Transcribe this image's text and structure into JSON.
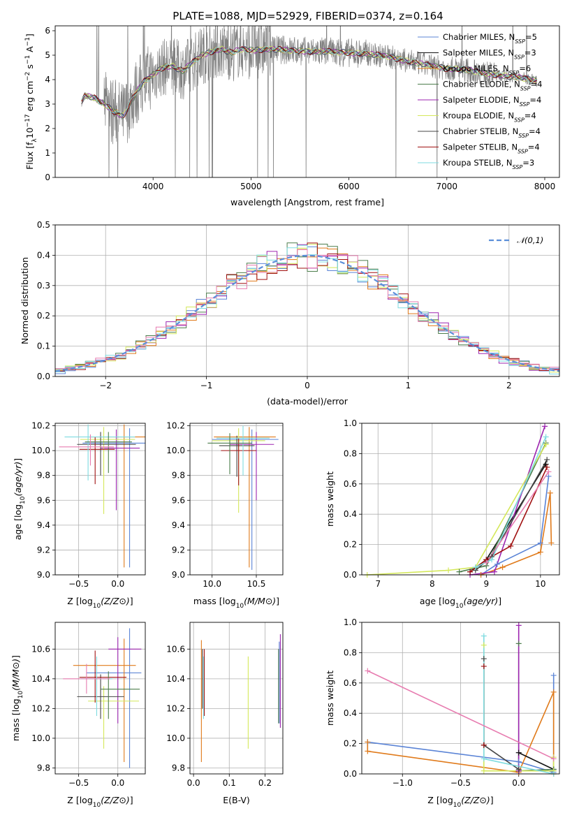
{
  "title": "PLATE=1088, MJD=52929, FIBERID=0374, z=0.164",
  "colors": {
    "Chabrier MILES": "#5b84d6",
    "Salpeter MILES": "#111111",
    "Kroupa MILES": "#e07a1a",
    "Chabrier ELODIE": "#4c7d4c",
    "Salpeter ELODIE": "#9d25b0",
    "Kroupa ELODIE": "#d4e85a",
    "Chabrier STELIB": "#444444",
    "Salpeter STELIB": "#a01010",
    "Kroupa STELIB": "#7edbe0",
    "pink": "#e77cb0",
    "data": "#808080"
  },
  "chart_data": [
    {
      "id": "spectrum",
      "type": "line",
      "xlabel": "wavelength [Angstrom, rest frame]",
      "ylabel": "Flux [f_λ10^{-17} erg cm^{-2} s^{-1} A^{-1}]",
      "xlim": [
        3000,
        8150
      ],
      "ylim": [
        0,
        6.2
      ],
      "xticks": [
        4000,
        5000,
        6000,
        7000,
        8000
      ],
      "yticks": [
        0,
        1,
        2,
        3,
        4,
        5,
        6
      ],
      "legend_position": "right",
      "legend": [
        {
          "name": "Chabrier MILES",
          "nssp": "5"
        },
        {
          "name": "Salpeter MILES",
          "nssp": "3"
        },
        {
          "name": "Kroupa MILES",
          "nssp": "6"
        },
        {
          "name": "Chabrier ELODIE",
          "nssp": "4"
        },
        {
          "name": "Salpeter ELODIE",
          "nssp": "4"
        },
        {
          "name": "Kroupa ELODIE",
          "nssp": "4"
        },
        {
          "name": "Chabrier STELIB",
          "nssp": "4"
        },
        {
          "name": "Salpeter STELIB",
          "nssp": "4"
        },
        {
          "name": "Kroupa STELIB",
          "nssp": "3"
        }
      ],
      "continuum": {
        "x": [
          3270,
          3300,
          3400,
          3500,
          3600,
          3700,
          3800,
          3900,
          4000,
          4100,
          4200,
          4300,
          4400,
          4500,
          4600,
          4700,
          4800,
          4900,
          5000,
          5200,
          5400,
          5600,
          5800,
          6000,
          6200,
          6400,
          6600,
          6800,
          7000,
          7200,
          7400,
          7600,
          7800,
          7920
        ],
        "y": [
          3.05,
          3.35,
          3.25,
          3.0,
          2.7,
          2.5,
          3.3,
          3.9,
          4.2,
          4.5,
          4.55,
          4.35,
          4.7,
          5.0,
          5.15,
          5.25,
          5.1,
          5.25,
          5.2,
          5.25,
          5.2,
          5.15,
          5.15,
          5.1,
          5.05,
          4.95,
          4.75,
          4.6,
          4.45,
          4.4,
          4.25,
          4.15,
          4.05,
          3.95
        ]
      }
    },
    {
      "id": "residuals",
      "type": "line",
      "xlabel": "(data-model)/error",
      "ylabel": "Normed distribution",
      "xlim": [
        -2.5,
        2.5
      ],
      "ylim": [
        0,
        0.5
      ],
      "xticks": [
        -2,
        -1,
        0,
        1,
        2
      ],
      "yticks": [
        0.0,
        0.1,
        0.2,
        0.3,
        0.4,
        0.5
      ],
      "grid": true,
      "legend_position": "top-right",
      "legend": [
        {
          "name": "𝒩(0,1)"
        }
      ],
      "gaussian": {
        "mean": 0,
        "sigma": 1
      }
    },
    {
      "id": "age-vs-Z",
      "type": "scatter",
      "xlabel": "Z [log10(Z/Z⊙)]",
      "ylabel": "age  [log10(age/yr)]",
      "xlim": [
        -0.8,
        0.35
      ],
      "ylim": [
        9.0,
        10.22
      ],
      "xticks": [
        -0.5,
        0.0
      ],
      "yticks": [
        9.0,
        9.2,
        9.4,
        9.6,
        9.8,
        10.0,
        10.2
      ],
      "grid": true,
      "errorbars": [
        {
          "series": "Chabrier MILES",
          "x": 0.15,
          "y": 10.06,
          "xerr": [
            0.6,
            0.2
          ],
          "yerr": [
            1.0,
            0.12
          ]
        },
        {
          "series": "Kroupa MILES",
          "x": 0.08,
          "y": 10.11,
          "xerr": [
            0.45,
            0.3
          ],
          "yerr": [
            1.05,
            0.1
          ]
        },
        {
          "series": "Salpeter ELODIE",
          "x": -0.02,
          "y": 10.02,
          "xerr": [
            0.2,
            0.3
          ],
          "yerr": [
            0.5,
            0.15
          ]
        },
        {
          "series": "Kroupa ELODIE",
          "x": -0.18,
          "y": 10.09,
          "xerr": [
            0.3,
            0.4
          ],
          "yerr": [
            0.6,
            0.1
          ]
        },
        {
          "series": "Chabrier STELIB",
          "x": -0.22,
          "y": 10.05,
          "xerr": [
            0.3,
            0.45
          ],
          "yerr": [
            0.25,
            0.1
          ]
        },
        {
          "series": "Salpeter STELIB",
          "x": -0.29,
          "y": 10.01,
          "xerr": [
            0.2,
            0.25
          ],
          "yerr": [
            0.28,
            0.1
          ]
        },
        {
          "series": "Kroupa STELIB",
          "x": -0.38,
          "y": 10.11,
          "xerr": [
            0.3,
            0.6
          ],
          "yerr": [
            0.35,
            0.1
          ]
        },
        {
          "series": "Chabrier ELODIE",
          "x": -0.12,
          "y": 10.07,
          "xerr": [
            0.3,
            0.3
          ],
          "yerr": [
            0.25,
            0.08
          ]
        },
        {
          "series": "pink",
          "x": -0.35,
          "y": 10.03,
          "xerr": [
            0.4,
            0.3
          ],
          "yerr": [
            0.15,
            0.1
          ]
        }
      ]
    },
    {
      "id": "age-vs-mass",
      "type": "scatter",
      "xlabel": "mass [log10(M/M⊙)]",
      "ylabel": "",
      "xlim": [
        9.75,
        10.8
      ],
      "ylim": [
        9.0,
        10.22
      ],
      "xticks": [
        10.0,
        10.5
      ],
      "yticks": [
        9.0,
        9.2,
        9.4,
        9.6,
        9.8,
        10.0,
        10.2
      ],
      "grid": true,
      "errorbars": [
        {
          "series": "Chabrier MILES",
          "x": 10.45,
          "y": 10.09,
          "xerr": [
            0.45,
            0.3
          ],
          "yerr": [
            1.05,
            0.08
          ]
        },
        {
          "series": "Kroupa MILES",
          "x": 10.42,
          "y": 10.11,
          "xerr": [
            0.4,
            0.3
          ],
          "yerr": [
            1.05,
            0.08
          ]
        },
        {
          "series": "Salpeter ELODIE",
          "x": 10.5,
          "y": 10.05,
          "xerr": [
            0.3,
            0.2
          ],
          "yerr": [
            0.45,
            0.1
          ]
        },
        {
          "series": "Kroupa ELODIE",
          "x": 10.3,
          "y": 10.08,
          "xerr": [
            0.3,
            0.3
          ],
          "yerr": [
            0.58,
            0.1
          ]
        },
        {
          "series": "Chabrier STELIB",
          "x": 10.28,
          "y": 10.04,
          "xerr": [
            0.2,
            0.2
          ],
          "yerr": [
            0.25,
            0.08
          ]
        },
        {
          "series": "Salpeter STELIB",
          "x": 10.3,
          "y": 10.0,
          "xerr": [
            0.2,
            0.2
          ],
          "yerr": [
            0.28,
            0.1
          ]
        },
        {
          "series": "Kroupa STELIB",
          "x": 10.35,
          "y": 10.1,
          "xerr": [
            0.3,
            0.3
          ],
          "yerr": [
            0.3,
            0.1
          ]
        },
        {
          "series": "Chabrier ELODIE",
          "x": 10.2,
          "y": 10.06,
          "xerr": [
            0.25,
            0.25
          ],
          "yerr": [
            0.25,
            0.08
          ]
        }
      ]
    },
    {
      "id": "massweight-vs-age",
      "type": "line",
      "xlabel": "age  [log10(age/yr)]",
      "ylabel": "mass weight",
      "xlim": [
        6.7,
        10.35
      ],
      "ylim": [
        0,
        1.0
      ],
      "xticks": [
        7,
        8,
        9,
        10
      ],
      "yticks": [
        0.0,
        0.2,
        0.4,
        0.6,
        0.8,
        1.0
      ],
      "grid": true,
      "series": [
        {
          "name": "Chabrier MILES",
          "x": [
            8.9,
            9.2,
            10.0,
            10.15
          ],
          "y": [
            0.0,
            0.07,
            0.21,
            0.65
          ]
        },
        {
          "name": "Kroupa MILES",
          "x": [
            8.9,
            9.3,
            10.0,
            10.18,
            10.2
          ],
          "y": [
            0.0,
            0.05,
            0.15,
            0.54,
            0.21
          ]
        },
        {
          "name": "Salpeter MILES",
          "x": [
            8.7,
            9.0,
            10.1
          ],
          "y": [
            0.02,
            0.1,
            0.73
          ]
        },
        {
          "name": "Chabrier ELODIE",
          "x": [
            8.5,
            9.0,
            10.1
          ],
          "y": [
            0.02,
            0.06,
            0.87
          ]
        },
        {
          "name": "Salpeter ELODIE",
          "x": [
            8.7,
            9.15,
            10.08
          ],
          "y": [
            0.0,
            0.02,
            0.98
          ]
        },
        {
          "name": "Kroupa ELODIE",
          "x": [
            6.8,
            8.3,
            8.8,
            10.1
          ],
          "y": [
            0.0,
            0.03,
            0.05,
            0.86
          ]
        },
        {
          "name": "Chabrier STELIB",
          "x": [
            8.8,
            9.1,
            10.12
          ],
          "y": [
            0.03,
            0.12,
            0.76
          ]
        },
        {
          "name": "Salpeter STELIB",
          "x": [
            8.7,
            9.0,
            9.45,
            10.12
          ],
          "y": [
            0.02,
            0.1,
            0.19,
            0.71
          ]
        },
        {
          "name": "Kroupa STELIB",
          "x": [
            8.8,
            9.1,
            10.1
          ],
          "y": [
            0.05,
            0.1,
            0.91
          ]
        },
        {
          "name": "pink",
          "x": [
            9.0,
            10.15
          ],
          "y": [
            0.08,
            0.68
          ]
        }
      ]
    },
    {
      "id": "mass-vs-Z",
      "type": "scatter",
      "xlabel": "Z [log10(Z/Z⊙)]",
      "ylabel": "mass [log10(M/M⊙)]",
      "xlim": [
        -0.8,
        0.35
      ],
      "ylim": [
        9.76,
        10.78
      ],
      "xticks": [
        -0.5,
        0.0
      ],
      "yticks": [
        9.8,
        10.0,
        10.2,
        10.4,
        10.6
      ],
      "grid": true,
      "errorbars": [
        {
          "series": "Chabrier MILES",
          "x": 0.15,
          "y": 10.44,
          "xerr": [
            0.55,
            0.15
          ],
          "yerr": [
            0.64,
            0.3
          ]
        },
        {
          "series": "Kroupa MILES",
          "x": 0.08,
          "y": 10.49,
          "xerr": [
            0.65,
            0.15
          ],
          "yerr": [
            0.65,
            0.18
          ]
        },
        {
          "series": "Salpeter ELODIE",
          "x": 0.0,
          "y": 10.6,
          "xerr": [
            0.12,
            0.3
          ],
          "yerr": [
            0.5,
            0.08
          ]
        },
        {
          "series": "Kroupa ELODIE",
          "x": -0.18,
          "y": 10.25,
          "xerr": [
            0.2,
            0.45
          ],
          "yerr": [
            0.32,
            0.1
          ]
        },
        {
          "series": "Chabrier STELIB",
          "x": -0.22,
          "y": 10.28,
          "xerr": [
            0.3,
            0.3
          ],
          "yerr": [
            0.15,
            0.15
          ]
        },
        {
          "series": "Salpeter STELIB",
          "x": -0.29,
          "y": 10.41,
          "xerr": [
            0.2,
            0.4
          ],
          "yerr": [
            0.17,
            0.18
          ]
        },
        {
          "series": "Kroupa STELIB",
          "x": -0.27,
          "y": 10.4,
          "xerr": [
            0.2,
            0.2
          ],
          "yerr": [
            0.25,
            0.15
          ]
        },
        {
          "series": "Chabrier ELODIE",
          "x": -0.12,
          "y": 10.33,
          "xerr": [
            0.1,
            0.4
          ],
          "yerr": [
            0.2,
            0.12
          ]
        },
        {
          "series": "pink",
          "x": -0.4,
          "y": 10.4,
          "xerr": [
            0.3,
            0.3
          ],
          "yerr": [
            0.1,
            0.1
          ]
        }
      ]
    },
    {
      "id": "mass-vs-EBV",
      "type": "scatter",
      "xlabel": "E(B-V)",
      "ylabel": "",
      "xlim": [
        -0.01,
        0.25
      ],
      "ylim": [
        9.76,
        10.78
      ],
      "xticks": [
        0.0,
        0.1,
        0.2
      ],
      "yticks": [
        9.8,
        10.0,
        10.2,
        10.4,
        10.6
      ],
      "grid": true,
      "errorbars": [
        {
          "series": "Chabrier MILES",
          "x": 0.24,
          "y": 10.35,
          "xerr": [
            0,
            0
          ],
          "yerr": [
            0.25,
            0.3
          ]
        },
        {
          "series": "Kroupa MILES",
          "x": 0.022,
          "y": 10.26,
          "xerr": [
            0,
            0
          ],
          "yerr": [
            0.42,
            0.4
          ]
        },
        {
          "series": "Salpeter ELODIE",
          "x": 0.243,
          "y": 10.45,
          "xerr": [
            0,
            0
          ],
          "yerr": [
            0.38,
            0.25
          ]
        },
        {
          "series": "Kroupa ELODIE",
          "x": 0.153,
          "y": 10.25,
          "xerr": [
            0,
            0
          ],
          "yerr": [
            0.32,
            0.3
          ]
        },
        {
          "series": "Chabrier STELIB",
          "x": 0.025,
          "y": 10.4,
          "xerr": [
            0,
            0
          ],
          "yerr": [
            0.2,
            0.2
          ]
        },
        {
          "series": "Salpeter STELIB",
          "x": 0.03,
          "y": 10.45,
          "xerr": [
            0,
            0
          ],
          "yerr": [
            0.3,
            0.15
          ]
        },
        {
          "series": "Kroupa STELIB",
          "x": 0.028,
          "y": 10.35,
          "xerr": [
            0,
            0
          ],
          "yerr": [
            0.22,
            0.2
          ]
        },
        {
          "series": "Chabrier ELODIE",
          "x": 0.238,
          "y": 10.35,
          "xerr": [
            0,
            0
          ],
          "yerr": [
            0.25,
            0.25
          ]
        }
      ]
    },
    {
      "id": "massweight-vs-Z",
      "type": "line",
      "xlabel": "Z [log10(Z/Z⊙)]",
      "ylabel": "mass weight",
      "xlim": [
        -1.35,
        0.35
      ],
      "ylim": [
        0,
        1.0
      ],
      "xticks": [
        -1.0,
        -0.5,
        0.0
      ],
      "yticks": [
        0.0,
        0.2,
        0.4,
        0.6,
        0.8,
        1.0
      ],
      "grid": true,
      "series": [
        {
          "name": "Chabrier MILES",
          "x": [
            -1.3,
            0.0,
            0.3,
            0.3
          ],
          "y": [
            0.21,
            0.08,
            0.01,
            0.65
          ]
        },
        {
          "name": "Kroupa MILES",
          "x": [
            -1.3,
            -1.3,
            0.0,
            0.3,
            0.3
          ],
          "y": [
            0.21,
            0.15,
            0.01,
            0.54,
            0.0
          ]
        },
        {
          "name": "Salpeter MILES",
          "x": [
            0.0,
            0.0,
            0.3
          ],
          "y": [
            0.02,
            0.14,
            0.03
          ]
        },
        {
          "name": "Chabrier ELODIE",
          "x": [
            0.0,
            0.0,
            0.3
          ],
          "y": [
            0.86,
            0.02,
            0.03
          ]
        },
        {
          "name": "Salpeter ELODIE",
          "x": [
            0.0,
            0.0
          ],
          "y": [
            0.98,
            0.02
          ]
        },
        {
          "name": "Kroupa ELODIE",
          "x": [
            -0.3,
            -0.3,
            0.3,
            0.3
          ],
          "y": [
            0.85,
            0.02,
            0.02,
            0.11
          ]
        },
        {
          "name": "Chabrier STELIB",
          "x": [
            -0.3,
            -0.3,
            0.0
          ],
          "y": [
            0.76,
            0.19,
            0.03
          ]
        },
        {
          "name": "Salpeter STELIB",
          "x": [
            -0.3,
            -0.3
          ],
          "y": [
            0.71,
            0.19
          ]
        },
        {
          "name": "Kroupa STELIB",
          "x": [
            -0.3,
            -0.3,
            0.3
          ],
          "y": [
            0.91,
            0.1,
            0.0
          ]
        },
        {
          "name": "pink",
          "x": [
            -1.3,
            0.3
          ],
          "y": [
            0.68,
            0.1
          ]
        }
      ]
    }
  ]
}
